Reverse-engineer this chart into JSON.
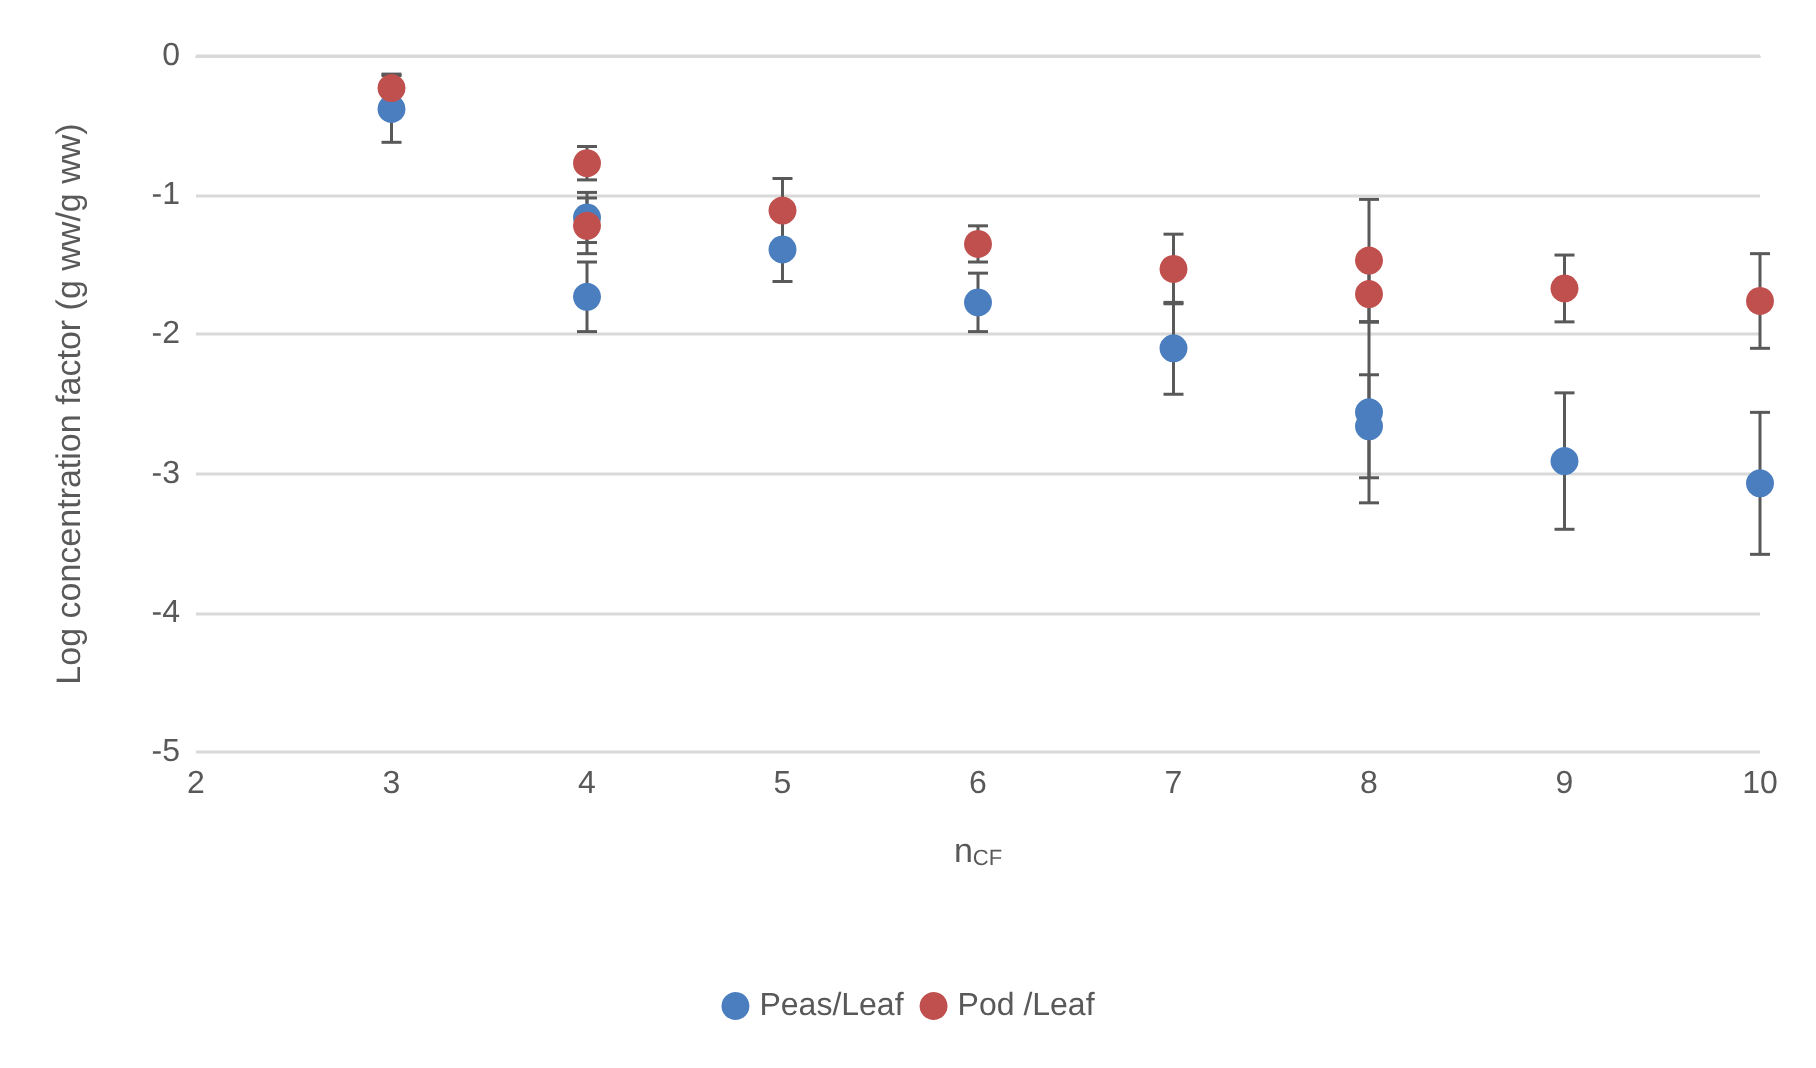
{
  "chart_data": {
    "type": "scatter",
    "xlabel": "n$_{CF}$",
    "ylabel": "Log concentration factor (g ww/g ww)",
    "xlim": [
      2,
      10
    ],
    "xticks": [
      2,
      3,
      4,
      5,
      6,
      7,
      8,
      9,
      10
    ],
    "ylim": [
      -5,
      0
    ],
    "yticks": [
      -5,
      -4,
      -3,
      -2,
      -1,
      0
    ],
    "grid": "y",
    "legend": "bottom",
    "marker": "circle",
    "series": [
      {
        "name": "Peas/Leaf",
        "color": "#4a7ebf",
        "x": [
          3,
          4,
          4,
          5,
          6,
          7,
          8,
          8,
          9,
          10
        ],
        "values": [
          -0.38,
          -1.16,
          -1.73,
          -1.39,
          -1.77,
          -2.1,
          -2.56,
          -2.66,
          -2.91,
          -3.07
        ],
        "errors": [
          0.24,
          0.18,
          0.25,
          0.23,
          0.21,
          0.33,
          0.65,
          0.37,
          0.49,
          0.51
        ]
      },
      {
        "name": "Pod /Leaf",
        "color": "#c0504d",
        "x": [
          3,
          4,
          4,
          5,
          6,
          7,
          8,
          8,
          9,
          10
        ],
        "values": [
          -0.23,
          -0.77,
          -1.22,
          -1.11,
          -1.35,
          -1.53,
          -1.47,
          -1.71,
          -1.67,
          -1.76
        ],
        "errors": [
          0.1,
          0.12,
          0.2,
          0.23,
          0.13,
          0.25,
          0.44,
          0.2,
          0.24,
          0.34
        ]
      }
    ]
  }
}
